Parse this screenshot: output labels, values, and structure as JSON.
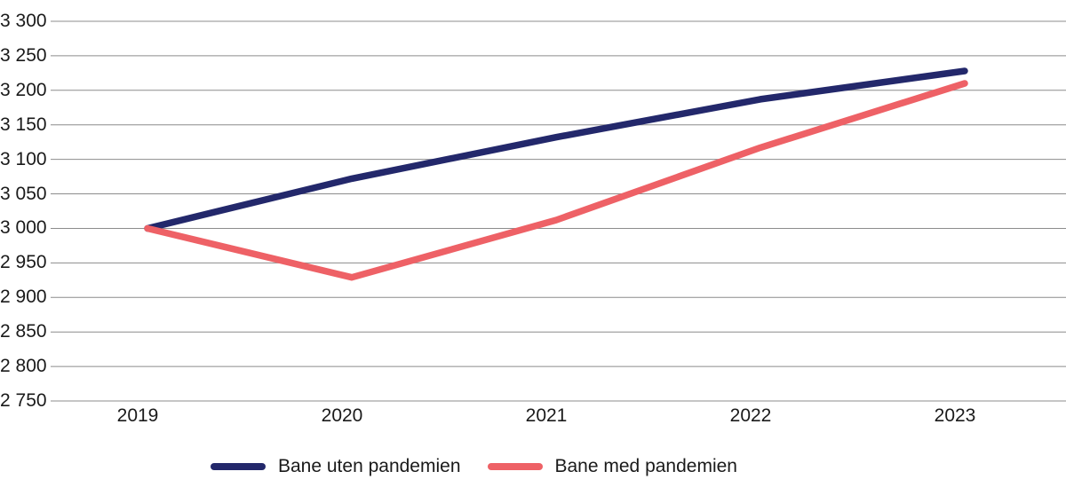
{
  "chart_data": {
    "type": "line",
    "x": [
      2019,
      2020,
      2021,
      2022,
      2023
    ],
    "xtick_labels": [
      "2019",
      "2020",
      "2021",
      "2022",
      "2023"
    ],
    "series": [
      {
        "name": "Bane uten pandemien",
        "color": "#23286b",
        "values": [
          3000,
          3072,
          3132,
          3187,
          3228
        ]
      },
      {
        "name": "Bane med pandemien",
        "color": "#ee6166",
        "values": [
          3000,
          2929,
          3012,
          3117,
          3210
        ]
      }
    ],
    "title": "",
    "xlabel": "",
    "ylabel": "",
    "ylim": [
      2750,
      3300
    ],
    "ytick_step": 50,
    "ytick_labels": [
      "3 300",
      "3 250",
      "3 200",
      "3 150",
      "3 100",
      "3 050",
      "3 000",
      "2 950",
      "2 900",
      "2 850",
      "2 800",
      "2 750"
    ],
    "grid": "horizontal",
    "legend_position": "bottom"
  },
  "colors": {
    "gridline": "#8c8c8c",
    "text": "#1a1a1a",
    "background": "#ffffff"
  },
  "legend": {
    "items": [
      {
        "label": "Bane uten pandemien"
      },
      {
        "label": "Bane med pandemien"
      }
    ]
  }
}
